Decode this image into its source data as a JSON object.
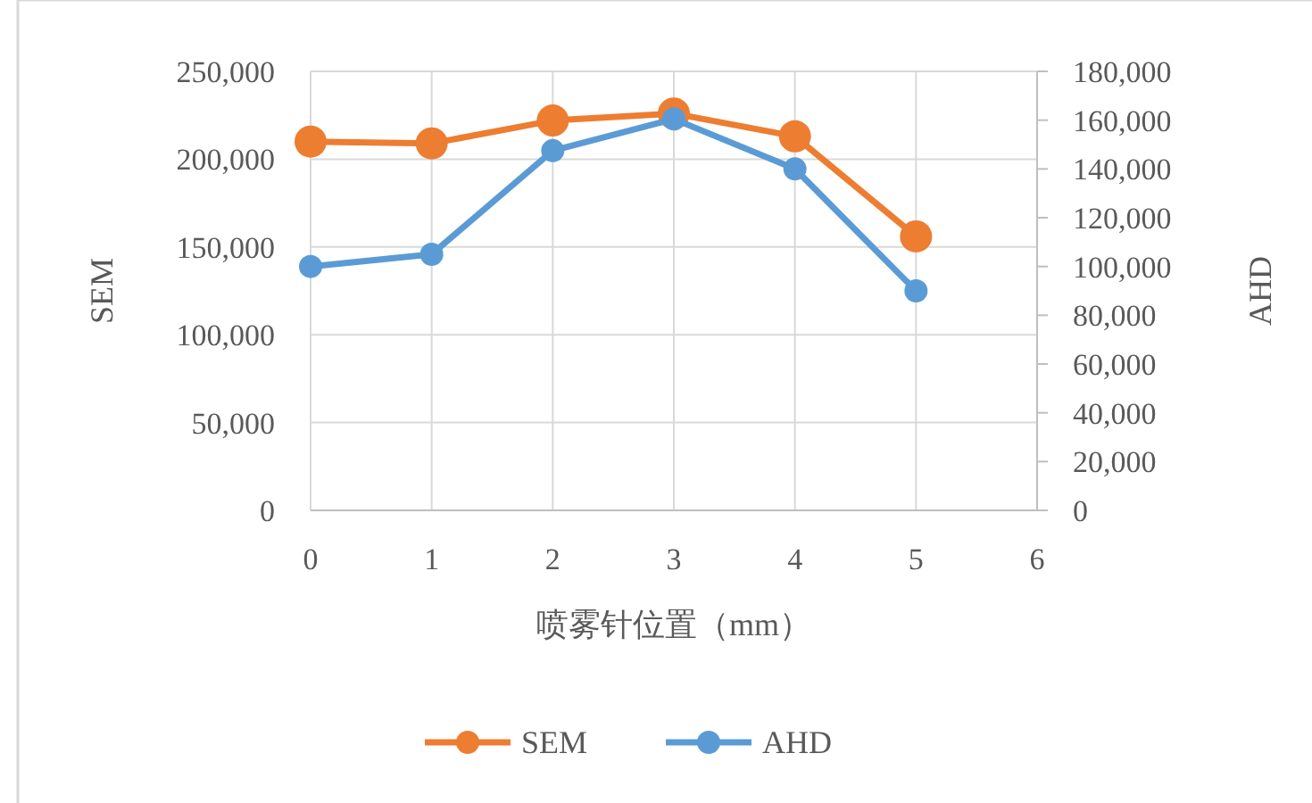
{
  "chart_data": {
    "type": "line",
    "xlabel": "喷雾针位置（mm）",
    "ylabel": "SEM",
    "y2label": "AHD",
    "x": [
      0,
      1,
      2,
      3,
      4,
      5
    ],
    "series": [
      {
        "name": "SEM",
        "color": "#ed7d31",
        "values": [
          210000,
          209000,
          222000,
          226000,
          213000,
          156000
        ]
      },
      {
        "name": "AHD",
        "color": "#5b9bd5",
        "axis": "y2",
        "values": [
          100000,
          105000,
          147500,
          160500,
          140000,
          90000
        ]
      }
    ],
    "xlim": [
      0,
      6
    ],
    "xticks": [
      0,
      1,
      2,
      3,
      4,
      5,
      6
    ],
    "ylim": [
      0,
      250000
    ],
    "yticks": [
      {
        "value": 0,
        "label": "0"
      },
      {
        "value": 50000,
        "label": "50,000"
      },
      {
        "value": 100000,
        "label": "100,000"
      },
      {
        "value": 150000,
        "label": "150,000"
      },
      {
        "value": 200000,
        "label": "200,000"
      },
      {
        "value": 250000,
        "label": "250,000"
      }
    ],
    "y2lim": [
      0,
      180000
    ],
    "y2ticks": [
      {
        "value": 0,
        "label": "0"
      },
      {
        "value": 20000,
        "label": "20,000"
      },
      {
        "value": 40000,
        "label": "40,000"
      },
      {
        "value": 60000,
        "label": "60,000"
      },
      {
        "value": 80000,
        "label": "80,000"
      },
      {
        "value": 100000,
        "label": "100,000"
      },
      {
        "value": 120000,
        "label": "120,000"
      },
      {
        "value": 140000,
        "label": "140,000"
      },
      {
        "value": 160000,
        "label": "160,000"
      },
      {
        "value": 180000,
        "label": "180,000"
      }
    ],
    "grid": true,
    "legend": "bottom",
    "marker": "circle",
    "line_style": "solid"
  }
}
